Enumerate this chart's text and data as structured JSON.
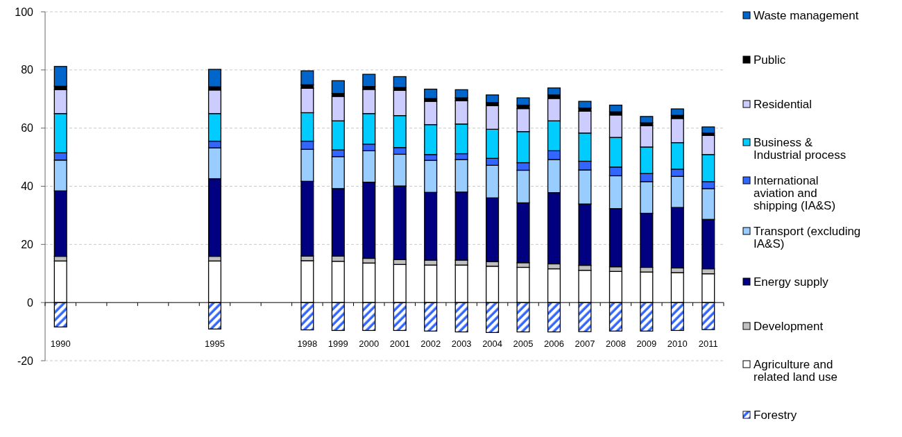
{
  "chart_data": {
    "type": "bar",
    "stacked": true,
    "categories": [
      "1990",
      null,
      null,
      null,
      null,
      "1995",
      null,
      null,
      "1998",
      "1999",
      "2000",
      "2001",
      "2002",
      "2003",
      "2004",
      "2005",
      "2006",
      "2007",
      "2008",
      "2009",
      "2010",
      "2011"
    ],
    "series": [
      {
        "name": "Forestry",
        "color": "#3366ff",
        "values": [
          -8.4,
          null,
          null,
          null,
          null,
          -9.1,
          null,
          null,
          -9.4,
          -9.6,
          -9.6,
          -9.6,
          -9.8,
          -10.1,
          -10.3,
          -10.1,
          -10.1,
          -10.0,
          -9.8,
          -9.8,
          -9.6,
          -9.3
        ]
      },
      {
        "name": "Agriculture and related land use",
        "color": "#ffffff",
        "values": [
          14.3,
          null,
          null,
          null,
          null,
          14.3,
          null,
          null,
          14.4,
          14.2,
          13.6,
          13.1,
          12.9,
          12.9,
          12.5,
          12.1,
          11.6,
          11.1,
          10.7,
          10.5,
          10.3,
          9.9
        ]
      },
      {
        "name": "Development",
        "color": "#c0c0c0",
        "values": [
          1.6,
          null,
          null,
          null,
          null,
          1.6,
          null,
          null,
          1.6,
          1.8,
          1.6,
          1.7,
          1.7,
          1.7,
          1.6,
          1.6,
          1.7,
          1.7,
          1.6,
          1.6,
          1.6,
          1.7
        ]
      },
      {
        "name": "Energy supply",
        "color": "#000080",
        "values": [
          22.5,
          null,
          null,
          null,
          null,
          26.7,
          null,
          null,
          25.7,
          23.2,
          26.2,
          25.3,
          23.3,
          23.4,
          21.9,
          20.6,
          24.5,
          21.1,
          20.0,
          18.6,
          20.8,
          17.0
        ]
      },
      {
        "name": "Transport (excluding IA&S)",
        "color": "#99ccff",
        "values": [
          10.6,
          null,
          null,
          null,
          null,
          10.6,
          null,
          null,
          11.0,
          11.0,
          10.8,
          10.9,
          11.0,
          11.2,
          11.2,
          11.2,
          11.4,
          11.7,
          11.3,
          10.9,
          10.7,
          10.6
        ]
      },
      {
        "name": "International aviation and shipping (IA&S)",
        "color": "#3366ff",
        "values": [
          2.5,
          null,
          null,
          null,
          null,
          2.3,
          null,
          null,
          2.8,
          2.3,
          2.3,
          2.3,
          2.0,
          2.0,
          2.4,
          2.6,
          3.0,
          3.0,
          3.0,
          2.8,
          2.5,
          2.4
        ]
      },
      {
        "name": "Business & Industrial process",
        "color": "#00ccff",
        "values": [
          13.5,
          null,
          null,
          null,
          null,
          9.5,
          null,
          null,
          9.8,
          10.0,
          10.5,
          11.0,
          10.3,
          10.2,
          10.0,
          10.7,
          10.3,
          9.7,
          10.2,
          9.1,
          9.1,
          9.3
        ]
      },
      {
        "name": "Residential",
        "color": "#ccccff",
        "values": [
          8.2,
          null,
          null,
          null,
          null,
          8.1,
          null,
          null,
          8.4,
          8.4,
          8.3,
          8.7,
          8.0,
          8.0,
          8.1,
          7.9,
          7.7,
          7.5,
          7.7,
          7.3,
          8.3,
          6.6
        ]
      },
      {
        "name": "Public",
        "color": "#000000",
        "values": [
          1.2,
          null,
          null,
          null,
          null,
          1.1,
          null,
          null,
          1.2,
          1.0,
          1.0,
          1.0,
          1.0,
          1.0,
          1.1,
          1.2,
          1.2,
          1.1,
          1.1,
          1.0,
          1.1,
          0.8
        ]
      },
      {
        "name": "Waste management",
        "color": "#0066cc",
        "values": [
          6.8,
          null,
          null,
          null,
          null,
          6.0,
          null,
          null,
          4.8,
          4.4,
          4.2,
          3.7,
          3.2,
          2.8,
          2.6,
          2.5,
          2.4,
          2.3,
          2.3,
          2.2,
          2.2,
          2.1
        ]
      }
    ],
    "ylim": [
      -20,
      100
    ],
    "yticks": [
      -20,
      0,
      20,
      40,
      60,
      80,
      100
    ],
    "grid": "y",
    "legend": "right"
  }
}
